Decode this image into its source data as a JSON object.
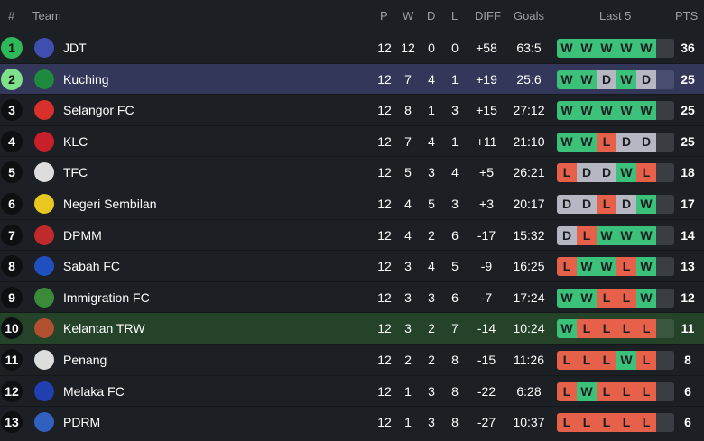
{
  "header": {
    "rank": "#",
    "team": "Team",
    "p": "P",
    "w": "W",
    "d": "D",
    "l": "L",
    "diff": "DIFF",
    "goals": "Goals",
    "last5": "Last 5",
    "pts": "PTS"
  },
  "colors": {
    "win": "#3cc17a",
    "draw": "#b5b8c3",
    "loss": "#e6604a",
    "rank1": "#2fb85a",
    "rank2": "#7ee08a",
    "highlight_blue": "#33385a",
    "highlight_green": "#244329"
  },
  "rows": [
    {
      "rank": "1",
      "team": "JDT",
      "p": "12",
      "w": "12",
      "d": "0",
      "l": "0",
      "diff": "+58",
      "goals": "63:5",
      "form": [
        "W",
        "W",
        "W",
        "W",
        "W"
      ],
      "pts": "36"
    },
    {
      "rank": "2",
      "team": "Kuching",
      "p": "12",
      "w": "7",
      "d": "4",
      "l": "1",
      "diff": "+19",
      "goals": "25:6",
      "form": [
        "W",
        "W",
        "D",
        "W",
        "D"
      ],
      "pts": "25"
    },
    {
      "rank": "3",
      "team": "Selangor FC",
      "p": "12",
      "w": "8",
      "d": "1",
      "l": "3",
      "diff": "+15",
      "goals": "27:12",
      "form": [
        "W",
        "W",
        "W",
        "W",
        "W"
      ],
      "pts": "25"
    },
    {
      "rank": "4",
      "team": "KLC",
      "p": "12",
      "w": "7",
      "d": "4",
      "l": "1",
      "diff": "+11",
      "goals": "21:10",
      "form": [
        "W",
        "W",
        "L",
        "D",
        "D"
      ],
      "pts": "25"
    },
    {
      "rank": "5",
      "team": "TFC",
      "p": "12",
      "w": "5",
      "d": "3",
      "l": "4",
      "diff": "+5",
      "goals": "26:21",
      "form": [
        "L",
        "D",
        "D",
        "W",
        "L"
      ],
      "pts": "18"
    },
    {
      "rank": "6",
      "team": "Negeri Sembilan",
      "p": "12",
      "w": "4",
      "d": "5",
      "l": "3",
      "diff": "+3",
      "goals": "20:17",
      "form": [
        "D",
        "D",
        "L",
        "D",
        "W"
      ],
      "pts": "17"
    },
    {
      "rank": "7",
      "team": "DPMM",
      "p": "12",
      "w": "4",
      "d": "2",
      "l": "6",
      "diff": "-17",
      "goals": "15:32",
      "form": [
        "D",
        "L",
        "W",
        "W",
        "W"
      ],
      "pts": "14"
    },
    {
      "rank": "8",
      "team": "Sabah FC",
      "p": "12",
      "w": "3",
      "d": "4",
      "l": "5",
      "diff": "-9",
      "goals": "16:25",
      "form": [
        "L",
        "W",
        "W",
        "L",
        "W"
      ],
      "pts": "13"
    },
    {
      "rank": "9",
      "team": "Immigration FC",
      "p": "12",
      "w": "3",
      "d": "3",
      "l": "6",
      "diff": "-7",
      "goals": "17:24",
      "form": [
        "W",
        "W",
        "L",
        "L",
        "W"
      ],
      "pts": "12"
    },
    {
      "rank": "10",
      "team": "Kelantan TRW",
      "p": "12",
      "w": "3",
      "d": "2",
      "l": "7",
      "diff": "-14",
      "goals": "10:24",
      "form": [
        "W",
        "L",
        "L",
        "L",
        "L"
      ],
      "pts": "11"
    },
    {
      "rank": "11",
      "team": "Penang",
      "p": "12",
      "w": "2",
      "d": "2",
      "l": "8",
      "diff": "-15",
      "goals": "11:26",
      "form": [
        "L",
        "L",
        "L",
        "W",
        "L"
      ],
      "pts": "8"
    },
    {
      "rank": "12",
      "team": "Melaka FC",
      "p": "12",
      "w": "1",
      "d": "3",
      "l": "8",
      "diff": "-22",
      "goals": "6:28",
      "form": [
        "L",
        "W",
        "L",
        "L",
        "L"
      ],
      "pts": "6"
    },
    {
      "rank": "13",
      "team": "PDRM",
      "p": "12",
      "w": "1",
      "d": "3",
      "l": "8",
      "diff": "-27",
      "goals": "10:37",
      "form": [
        "L",
        "L",
        "L",
        "L",
        "L"
      ],
      "pts": "6"
    }
  ]
}
